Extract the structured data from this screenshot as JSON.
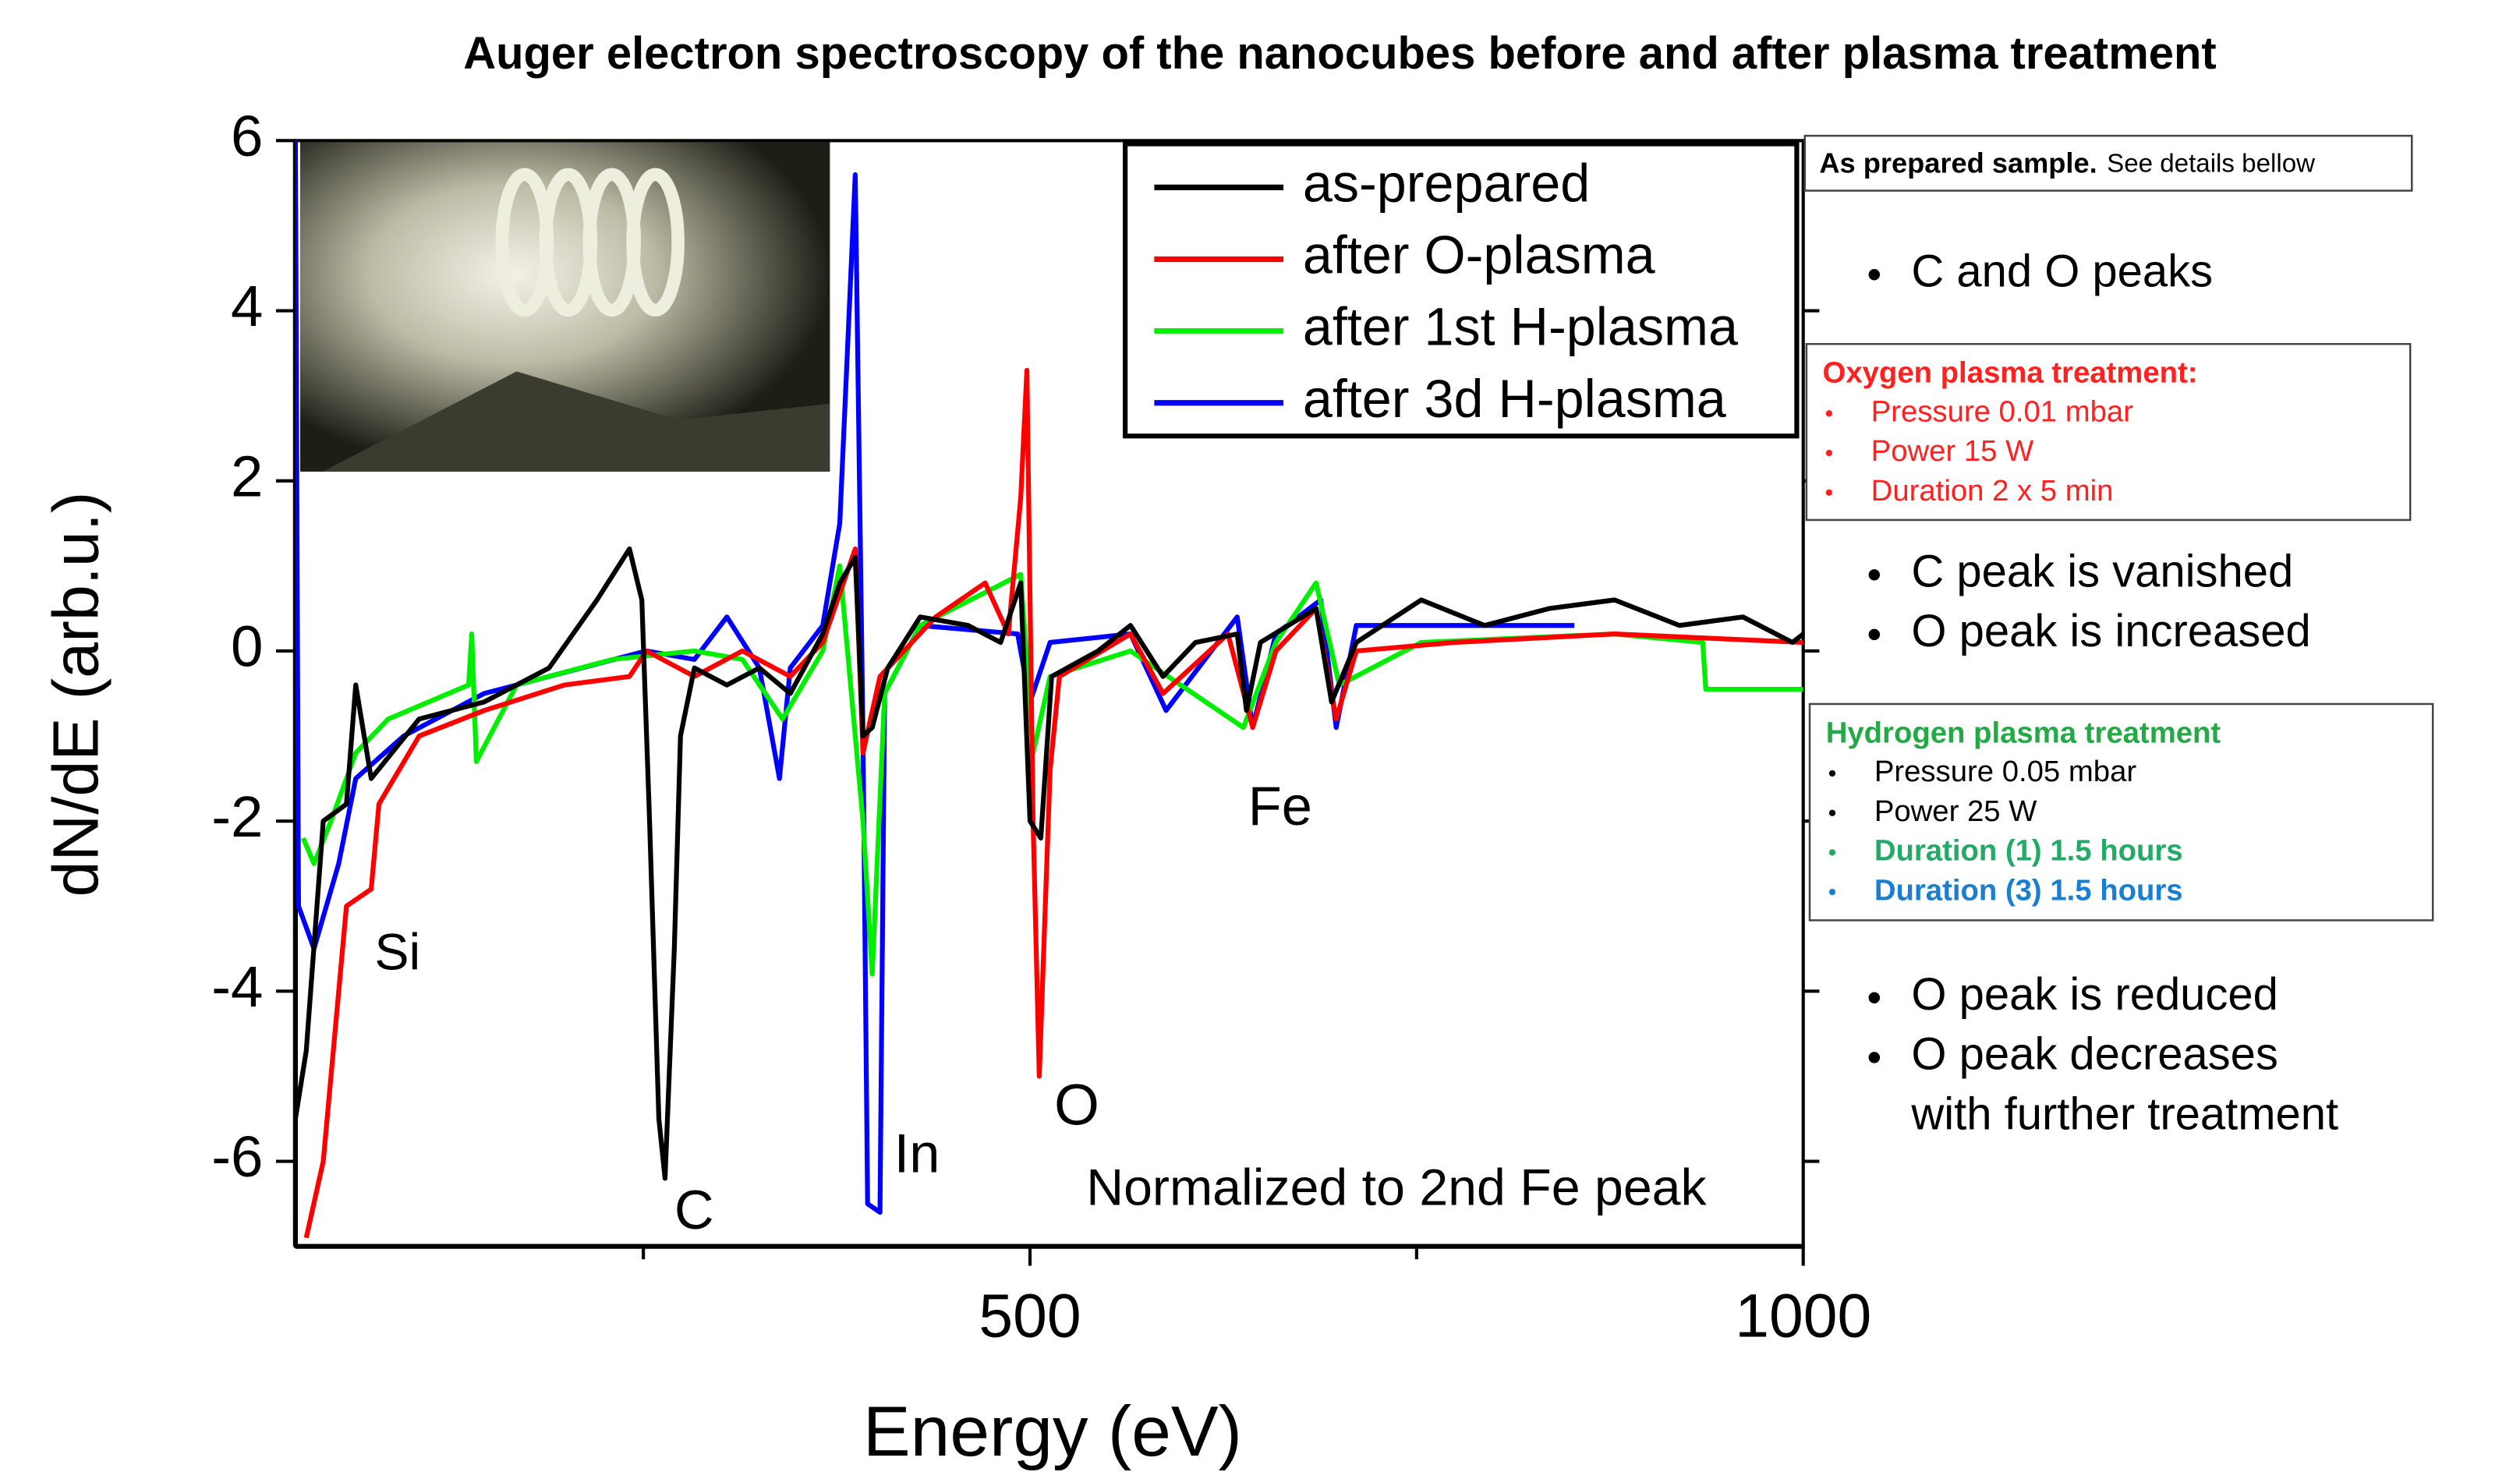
{
  "chart_data": {
    "type": "line",
    "title": "Auger electron spectroscopy of the nanocubes before and after plasma treatment",
    "x_label": "Energy (eV)",
    "y_label": "dN/dE (arb.u.)",
    "xlim": [
      25,
      1000
    ],
    "xticks": [
      500,
      1000
    ],
    "x_minor_ticks": [
      250,
      750
    ],
    "ylim": [
      -7,
      6
    ],
    "yticks": [
      -6,
      -4,
      -2,
      0,
      2,
      4,
      6
    ],
    "legend": "upper right",
    "series": [
      {
        "name": "as-prepared",
        "color": "#000000",
        "x": [
          25,
          32,
          43,
          58,
          64,
          74,
          105,
          147,
          189,
          220,
          241,
          249,
          254,
          260,
          264,
          270,
          274,
          283,
          304,
          325,
          345,
          366,
          377,
          387,
          392,
          398,
          408,
          429,
          460,
          481,
          494,
          500,
          507,
          514,
          544,
          565,
          586,
          607,
          634,
          640,
          649,
          685,
          695,
          711,
          753,
          794,
          836,
          878,
          920,
          961,
          993,
          1000
        ],
        "values": [
          -5.5,
          -4.7,
          -2,
          -1.8,
          -0.4,
          -1.5,
          -0.8,
          -0.6,
          -0.2,
          0.6,
          1.2,
          0.6,
          -2,
          -5.5,
          -6.2,
          -3.5,
          -1,
          -0.2,
          -0.4,
          -0.2,
          -0.5,
          0.2,
          0.8,
          1.1,
          -1,
          -0.9,
          -0.2,
          0.4,
          0.3,
          0.1,
          0.8,
          -2,
          -2.2,
          -0.3,
          0,
          0.3,
          -0.3,
          0.1,
          0.2,
          -0.7,
          0.1,
          0.5,
          -0.6,
          0.1,
          0.6,
          0.3,
          0.5,
          0.6,
          0.3,
          0.4,
          0.1,
          0.2
        ]
      },
      {
        "name": "after O-plasma",
        "color": "#ff0000",
        "x": [
          32,
          43,
          48,
          58,
          74,
          79,
          105,
          147,
          199,
          241,
          252,
          283,
          314,
          345,
          366,
          387,
          392,
          403,
          439,
          471,
          486,
          494,
          498,
          502,
          506,
          513,
          519,
          565,
          586,
          628,
          644,
          659,
          685,
          698,
          711,
          774,
          878,
          1000
        ],
        "values": [
          -6.9,
          -6,
          -5,
          -3,
          -2.8,
          -1.8,
          -1,
          -0.7,
          -0.4,
          -0.3,
          0,
          -0.3,
          0,
          -0.3,
          0.1,
          1.2,
          -1.2,
          -0.3,
          0.4,
          0.8,
          0.2,
          1.8,
          3.3,
          -2,
          -5,
          -1.4,
          -0.3,
          0.2,
          -0.5,
          0.2,
          -0.9,
          0,
          0.5,
          -0.8,
          0,
          0.1,
          0.2,
          0.1
        ]
      },
      {
        "name": "after 1st H-plasma",
        "color": "#00ee00",
        "x": [
          30,
          37,
          48,
          64,
          85,
          137,
          139,
          142,
          168,
          230,
          283,
          314,
          340,
          366,
          377,
          392,
          398,
          406,
          429,
          494,
          502,
          513,
          565,
          638,
          659,
          685,
          700,
          753,
          878,
          935,
          937,
          1000
        ],
        "values": [
          -2.2,
          -2.5,
          -2,
          -1.2,
          -0.8,
          -0.4,
          0.2,
          -1.3,
          -0.4,
          -0.1,
          0,
          -0.1,
          -0.8,
          0,
          1,
          -2,
          -3.8,
          -0.5,
          0.3,
          0.9,
          -1.2,
          -0.3,
          0,
          -0.9,
          0.1,
          0.8,
          -0.4,
          0.1,
          0.2,
          0.1,
          -0.45,
          -0.45
        ]
      },
      {
        "name": "after 3d H-plasma",
        "color": "#0000ff",
        "x": [
          25,
          27,
          37,
          53,
          64,
          95,
          147,
          252,
          283,
          304,
          325,
          338,
          345,
          366,
          377,
          387,
          392,
          395,
          403,
          406,
          429,
          492,
          500,
          513,
          565,
          588,
          634,
          644,
          659,
          688,
          698,
          711,
          852
        ],
        "values": [
          6,
          -3,
          -3.5,
          -2.5,
          -1.5,
          -1,
          -0.5,
          0,
          -0.1,
          0.4,
          -0.2,
          -1.5,
          -0.2,
          0.3,
          1.5,
          5.6,
          -1,
          -6.5,
          -6.6,
          -0.5,
          0.3,
          0.2,
          -0.6,
          0.1,
          0.2,
          -0.7,
          0.4,
          -0.9,
          0.2,
          0.6,
          -0.9,
          0.3,
          0.3
        ]
      }
    ],
    "annotations": [
      "Si",
      "C",
      "In",
      "O",
      "Fe",
      "Normalized to 2nd Fe peak"
    ]
  },
  "panel": {
    "prepared": {
      "title": "As prepared sample.",
      "subtitle": "See details bellow",
      "notes": [
        [
          "C and O peaks"
        ]
      ]
    },
    "oxygen": {
      "title": "Oxygen plasma treatment:",
      "color": "#ff2020",
      "items": [
        {
          "text": "Pressure 0.01 mbar",
          "color": "#ff2020",
          "bold": false
        },
        {
          "text": "Power 15 W",
          "color": "#ff2020",
          "bold": false
        },
        {
          "text": "Duration 2 x 5 min",
          "color": "#ff2020",
          "bold": false
        }
      ],
      "notes": [
        [
          "C peak is vanished"
        ],
        [
          "O peak is increased"
        ]
      ]
    },
    "hydrogen": {
      "title": "Hydrogen plasma treatment",
      "color": "#22aa44",
      "items": [
        {
          "text": "Pressure 0.05 mbar",
          "color": "#000000",
          "bold": false
        },
        {
          "text": "Power 25 W",
          "color": "#000000",
          "bold": false
        },
        {
          "text": "Duration (1) 1.5 hours",
          "color": "#22aa66",
          "bold": true
        },
        {
          "text": "Duration (3) 1.5 hours",
          "color": "#1a7fd0",
          "bold": true
        }
      ],
      "notes": [
        [
          "O peak is reduced"
        ],
        [
          "O peak decreases",
          "with further treatment"
        ]
      ]
    }
  }
}
